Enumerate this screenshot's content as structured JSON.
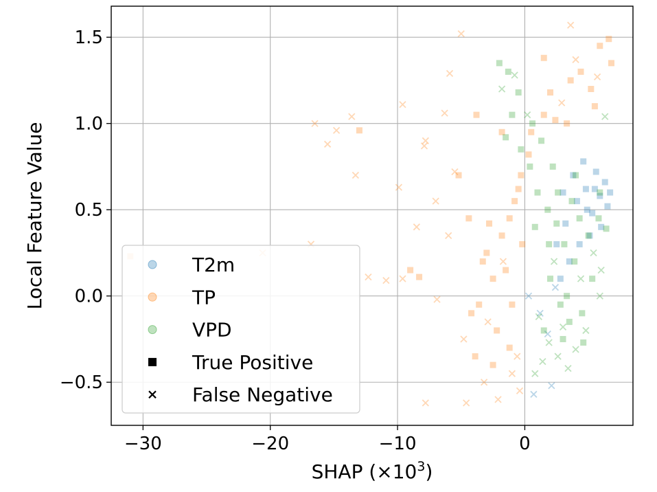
{
  "chart_data": {
    "type": "scatter",
    "title": "",
    "xlabel": "SHAP (×10",
    "xlabel_sup": "3",
    "xlabel_close": ")",
    "ylabel": "Local Feature Value",
    "xlim": [
      -32.5,
      8.5
    ],
    "ylim": [
      -0.75,
      1.68
    ],
    "xticks": [
      -30,
      -20,
      -10,
      0
    ],
    "xtick_labels": [
      "−30",
      "−20",
      "−10",
      "0"
    ],
    "yticks": [
      -0.5,
      0.0,
      0.5,
      1.0,
      1.5
    ],
    "ytick_labels": [
      "−0.5",
      "0.0",
      "0.5",
      "1.0",
      "1.5"
    ],
    "grid": true,
    "point_alpha": 0.3,
    "legend": {
      "position": "lower-left",
      "entries": [
        {
          "label": "T2m",
          "kind": "series",
          "color": "#1f77b4"
        },
        {
          "label": "TP",
          "kind": "series",
          "color": "#ff7f0e"
        },
        {
          "label": "VPD",
          "kind": "series",
          "color": "#2ca02c"
        },
        {
          "label": "True Positive",
          "kind": "marker",
          "marker": "square"
        },
        {
          "label": "False Negative",
          "kind": "marker",
          "marker": "x"
        }
      ]
    },
    "series": [
      {
        "name": "T2m",
        "color": "#1f77b4",
        "points": [
          {
            "x": 3.2,
            "y": 0.42,
            "m": "s"
          },
          {
            "x": 4.1,
            "y": 0.55,
            "m": "s"
          },
          {
            "x": 4.8,
            "y": 0.62,
            "m": "s"
          },
          {
            "x": 5.3,
            "y": 0.48,
            "m": "s"
          },
          {
            "x": 5.9,
            "y": 0.58,
            "m": "s"
          },
          {
            "x": 6.3,
            "y": 0.66,
            "m": "s"
          },
          {
            "x": 6.7,
            "y": 0.6,
            "m": "s"
          },
          {
            "x": 5.6,
            "y": 0.72,
            "m": "s"
          },
          {
            "x": 4.6,
            "y": 0.78,
            "m": "s"
          },
          {
            "x": 3.8,
            "y": 0.7,
            "m": "s"
          },
          {
            "x": 5.1,
            "y": 0.35,
            "m": "s"
          },
          {
            "x": 6.0,
            "y": 0.4,
            "m": "s"
          },
          {
            "x": 4.3,
            "y": 0.3,
            "m": "s"
          },
          {
            "x": 3.5,
            "y": 0.2,
            "m": "s"
          },
          {
            "x": 2.8,
            "y": 0.1,
            "m": "s"
          },
          {
            "x": 4.9,
            "y": 0.5,
            "m": "s"
          },
          {
            "x": 5.5,
            "y": 0.62,
            "m": "s"
          },
          {
            "x": 6.5,
            "y": 0.52,
            "m": "s"
          },
          {
            "x": 3.0,
            "y": 0.6,
            "m": "s"
          },
          {
            "x": 2.5,
            "y": 0.3,
            "m": "s"
          },
          {
            "x": 0.7,
            "y": -0.57,
            "m": "x"
          },
          {
            "x": 2.1,
            "y": -0.52,
            "m": "x"
          },
          {
            "x": 1.8,
            "y": -0.22,
            "m": "x"
          },
          {
            "x": 1.2,
            "y": -0.1,
            "m": "x"
          },
          {
            "x": 0.3,
            "y": 0.0,
            "m": "x"
          },
          {
            "x": 2.4,
            "y": 0.05,
            "m": "x"
          }
        ]
      },
      {
        "name": "TP",
        "color": "#ff7f0e",
        "points": [
          {
            "x": -3.0,
            "y": 0.25,
            "m": "s"
          },
          {
            "x": -2.5,
            "y": 0.1,
            "m": "s"
          },
          {
            "x": -1.8,
            "y": 0.35,
            "m": "s"
          },
          {
            "x": -1.2,
            "y": 0.45,
            "m": "s"
          },
          {
            "x": -0.8,
            "y": 0.55,
            "m": "s"
          },
          {
            "x": -3.6,
            "y": -0.05,
            "m": "s"
          },
          {
            "x": -4.2,
            "y": -0.1,
            "m": "s"
          },
          {
            "x": -2.2,
            "y": -0.2,
            "m": "s"
          },
          {
            "x": -1.5,
            "y": 0.15,
            "m": "s"
          },
          {
            "x": -0.5,
            "y": 0.62,
            "m": "s"
          },
          {
            "x": -2.8,
            "y": 0.42,
            "m": "s"
          },
          {
            "x": -3.3,
            "y": 0.2,
            "m": "s"
          },
          {
            "x": -1.0,
            "y": -0.05,
            "m": "s"
          },
          {
            "x": -0.3,
            "y": 0.7,
            "m": "s"
          },
          {
            "x": 0.5,
            "y": 0.95,
            "m": "s"
          },
          {
            "x": 1.5,
            "y": 1.05,
            "m": "s"
          },
          {
            "x": 2.4,
            "y": 1.02,
            "m": "s"
          },
          {
            "x": 3.3,
            "y": 1.0,
            "m": "s"
          },
          {
            "x": 3.6,
            "y": 1.25,
            "m": "s"
          },
          {
            "x": 4.4,
            "y": 1.3,
            "m": "s"
          },
          {
            "x": 5.2,
            "y": 1.2,
            "m": "s"
          },
          {
            "x": 5.9,
            "y": 1.45,
            "m": "s"
          },
          {
            "x": 6.6,
            "y": 1.49,
            "m": "s"
          },
          {
            "x": 6.8,
            "y": 1.35,
            "m": "s"
          },
          {
            "x": 5.5,
            "y": 1.1,
            "m": "s"
          },
          {
            "x": 2.0,
            "y": 1.18,
            "m": "s"
          },
          {
            "x": 1.5,
            "y": 1.38,
            "m": "s"
          },
          {
            "x": 0.3,
            "y": 0.82,
            "m": "s"
          },
          {
            "x": -1.8,
            "y": 0.95,
            "m": "s"
          },
          {
            "x": -3.8,
            "y": 1.05,
            "m": "s"
          },
          {
            "x": -5.2,
            "y": 0.7,
            "m": "s"
          },
          {
            "x": -4.4,
            "y": 0.45,
            "m": "s"
          },
          {
            "x": -13.0,
            "y": 0.96,
            "m": "s"
          },
          {
            "x": -31.0,
            "y": 0.23,
            "m": "s"
          },
          {
            "x": -2.5,
            "y": -0.4,
            "m": "s"
          },
          {
            "x": -3.9,
            "y": -0.35,
            "m": "s"
          },
          {
            "x": -8.3,
            "y": 0.11,
            "m": "s"
          },
          {
            "x": -9.0,
            "y": 0.15,
            "m": "s"
          },
          {
            "x": -1.2,
            "y": -0.3,
            "m": "s"
          },
          {
            "x": -0.2,
            "y": 0.3,
            "m": "s"
          },
          {
            "x": -5.0,
            "y": 1.52,
            "m": "x"
          },
          {
            "x": 3.6,
            "y": 1.57,
            "m": "x"
          },
          {
            "x": -16.5,
            "y": 1.0,
            "m": "x"
          },
          {
            "x": -15.5,
            "y": 0.88,
            "m": "x"
          },
          {
            "x": -14.8,
            "y": 0.96,
            "m": "x"
          },
          {
            "x": -13.6,
            "y": 1.04,
            "m": "x"
          },
          {
            "x": -13.3,
            "y": 0.7,
            "m": "x"
          },
          {
            "x": -16.8,
            "y": 0.3,
            "m": "x"
          },
          {
            "x": -20.6,
            "y": 0.25,
            "m": "x"
          },
          {
            "x": -12.3,
            "y": 0.11,
            "m": "x"
          },
          {
            "x": -10.9,
            "y": 0.09,
            "m": "x"
          },
          {
            "x": -9.9,
            "y": 0.63,
            "m": "x"
          },
          {
            "x": -9.6,
            "y": 1.11,
            "m": "x"
          },
          {
            "x": -7.8,
            "y": 0.9,
            "m": "x"
          },
          {
            "x": -7.8,
            "y": -0.62,
            "m": "x"
          },
          {
            "x": -6.3,
            "y": 1.06,
            "m": "x"
          },
          {
            "x": -5.9,
            "y": 1.29,
            "m": "x"
          },
          {
            "x": -8.5,
            "y": 0.4,
            "m": "x"
          },
          {
            "x": -7.0,
            "y": 0.55,
            "m": "x"
          },
          {
            "x": -6.0,
            "y": 0.35,
            "m": "x"
          },
          {
            "x": -4.8,
            "y": -0.25,
            "m": "x"
          },
          {
            "x": -3.2,
            "y": -0.5,
            "m": "x"
          },
          {
            "x": -4.6,
            "y": -0.62,
            "m": "x"
          },
          {
            "x": -2.1,
            "y": -0.6,
            "m": "x"
          },
          {
            "x": -1.0,
            "y": -0.45,
            "m": "x"
          },
          {
            "x": -0.4,
            "y": -0.55,
            "m": "x"
          },
          {
            "x": -9.6,
            "y": 0.1,
            "m": "x"
          },
          {
            "x": -6.9,
            "y": -0.02,
            "m": "x"
          },
          {
            "x": -7.9,
            "y": 0.87,
            "m": "x"
          },
          {
            "x": -5.5,
            "y": 0.72,
            "m": "x"
          },
          {
            "x": 4.0,
            "y": 1.37,
            "m": "x"
          },
          {
            "x": 5.7,
            "y": 1.27,
            "m": "x"
          },
          {
            "x": 2.9,
            "y": 1.12,
            "m": "x"
          },
          {
            "x": -1.7,
            "y": 0.2,
            "m": "x"
          },
          {
            "x": -2.9,
            "y": -0.15,
            "m": "x"
          },
          {
            "x": -0.6,
            "y": -0.35,
            "m": "x"
          }
        ]
      },
      {
        "name": "VPD",
        "color": "#2ca02c",
        "points": [
          {
            "x": -0.5,
            "y": 1.18,
            "m": "s"
          },
          {
            "x": -1.0,
            "y": 1.05,
            "m": "s"
          },
          {
            "x": -1.5,
            "y": 0.92,
            "m": "s"
          },
          {
            "x": -0.3,
            "y": 0.85,
            "m": "s"
          },
          {
            "x": 0.4,
            "y": 0.75,
            "m": "s"
          },
          {
            "x": 1.0,
            "y": 0.6,
            "m": "s"
          },
          {
            "x": 1.8,
            "y": 0.5,
            "m": "s"
          },
          {
            "x": 2.5,
            "y": 0.42,
            "m": "s"
          },
          {
            "x": 3.1,
            "y": 0.3,
            "m": "s"
          },
          {
            "x": 3.7,
            "y": 0.55,
            "m": "s"
          },
          {
            "x": 4.3,
            "y": 0.45,
            "m": "s"
          },
          {
            "x": 5.0,
            "y": 0.35,
            "m": "s"
          },
          {
            "x": 5.8,
            "y": 0.45,
            "m": "s"
          },
          {
            "x": 6.4,
            "y": 0.39,
            "m": "s"
          },
          {
            "x": 2.0,
            "y": 0.1,
            "m": "s"
          },
          {
            "x": 2.8,
            "y": -0.05,
            "m": "s"
          },
          {
            "x": 3.5,
            "y": -0.15,
            "m": "s"
          },
          {
            "x": 4.5,
            "y": -0.1,
            "m": "s"
          },
          {
            "x": 1.5,
            "y": -0.2,
            "m": "s"
          },
          {
            "x": 3.0,
            "y": -0.25,
            "m": "s"
          },
          {
            "x": 4.6,
            "y": -0.27,
            "m": "s"
          },
          {
            "x": 2.2,
            "y": 0.75,
            "m": "s"
          },
          {
            "x": 1.3,
            "y": 0.9,
            "m": "s"
          },
          {
            "x": 0.6,
            "y": 1.0,
            "m": "s"
          },
          {
            "x": -2.0,
            "y": 1.35,
            "m": "s"
          },
          {
            "x": -1.3,
            "y": 1.3,
            "m": "s"
          },
          {
            "x": 3.9,
            "y": 0.2,
            "m": "s"
          },
          {
            "x": 5.3,
            "y": 0.1,
            "m": "s"
          },
          {
            "x": 2.6,
            "y": 0.6,
            "m": "s"
          },
          {
            "x": 4.0,
            "y": 0.7,
            "m": "s"
          },
          {
            "x": 3.3,
            "y": 0.0,
            "m": "s"
          },
          {
            "x": 1.9,
            "y": 0.3,
            "m": "s"
          },
          {
            "x": 5.9,
            "y": 0.6,
            "m": "s"
          },
          {
            "x": 0.8,
            "y": 0.4,
            "m": "s"
          },
          {
            "x": -1.8,
            "y": 1.2,
            "m": "x"
          },
          {
            "x": -0.8,
            "y": 1.28,
            "m": "x"
          },
          {
            "x": 0.2,
            "y": 1.05,
            "m": "x"
          },
          {
            "x": 0.8,
            "y": -0.45,
            "m": "x"
          },
          {
            "x": 1.4,
            "y": -0.38,
            "m": "x"
          },
          {
            "x": 2.6,
            "y": -0.35,
            "m": "x"
          },
          {
            "x": 3.4,
            "y": -0.42,
            "m": "x"
          },
          {
            "x": 4.0,
            "y": -0.31,
            "m": "x"
          },
          {
            "x": 4.8,
            "y": -0.2,
            "m": "x"
          },
          {
            "x": 5.9,
            "y": 0.0,
            "m": "x"
          },
          {
            "x": 6.0,
            "y": 0.15,
            "m": "x"
          },
          {
            "x": 6.3,
            "y": 1.04,
            "m": "x"
          },
          {
            "x": 1.9,
            "y": -0.27,
            "m": "x"
          },
          {
            "x": 3.0,
            "y": -0.18,
            "m": "x"
          },
          {
            "x": 1.1,
            "y": -0.12,
            "m": "x"
          },
          {
            "x": 4.4,
            "y": 0.1,
            "m": "x"
          },
          {
            "x": 2.3,
            "y": 0.2,
            "m": "x"
          },
          {
            "x": 5.4,
            "y": 0.25,
            "m": "x"
          }
        ]
      }
    ]
  }
}
